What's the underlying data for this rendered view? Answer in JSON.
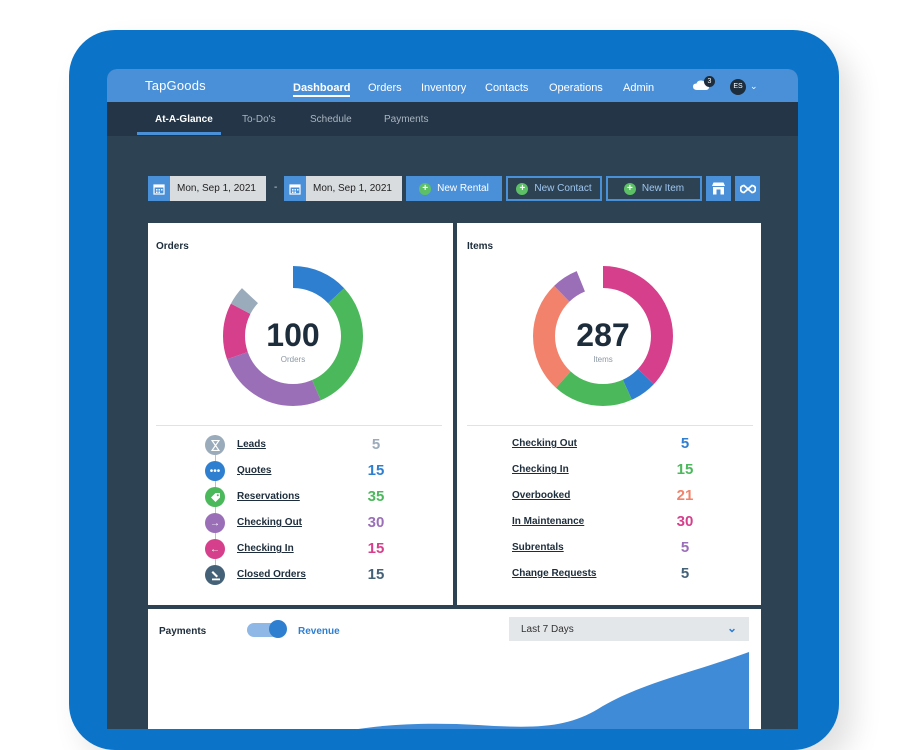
{
  "app": {
    "logo": "TapGoods"
  },
  "topnav": {
    "items": [
      {
        "label": "Dashboard",
        "active": true
      },
      {
        "label": "Orders",
        "active": false
      },
      {
        "label": "Inventory",
        "active": false
      },
      {
        "label": "Contacts",
        "active": false
      },
      {
        "label": "Operations",
        "active": false
      },
      {
        "label": "Admin",
        "active": false
      }
    ],
    "notification_count": "3",
    "avatar_initials": "ES"
  },
  "subnav": {
    "items": [
      {
        "label": "At-A-Glance",
        "active": true
      },
      {
        "label": "To-Do's",
        "active": false
      },
      {
        "label": "Schedule",
        "active": false
      },
      {
        "label": "Payments",
        "active": false
      }
    ]
  },
  "toolbar": {
    "start_date": "Mon, Sep 1, 2021",
    "separator": "-",
    "end_date": "Mon, Sep 1, 2021",
    "new_rental": "New Rental",
    "new_contact": "New Contact",
    "new_item": "New Item"
  },
  "orders": {
    "title": "Orders",
    "total": "100",
    "total_label": "Orders",
    "rows": [
      {
        "label": "Leads",
        "value": "5",
        "color": "#9aabbb",
        "icon": "hourglass-icon"
      },
      {
        "label": "Quotes",
        "value": "15",
        "color": "#2f7fd0",
        "icon": "ellipsis-icon"
      },
      {
        "label": "Reservations",
        "value": "35",
        "color": "#4cb85c",
        "icon": "tag-icon"
      },
      {
        "label": "Checking Out",
        "value": "30",
        "color": "#9b6fb8",
        "icon": "arrow-right-icon"
      },
      {
        "label": "Checking In",
        "value": "15",
        "color": "#d63f8c",
        "icon": "arrow-left-icon"
      },
      {
        "label": "Closed Orders",
        "value": "15",
        "color": "#456178",
        "icon": "stamp-icon"
      }
    ]
  },
  "items": {
    "title": "Items",
    "total": "287",
    "total_label": "Items",
    "rows": [
      {
        "label": "Checking Out",
        "value": "5",
        "color": "#2f7fd0"
      },
      {
        "label": "Checking In",
        "value": "15",
        "color": "#4cb85c"
      },
      {
        "label": "Overbooked",
        "value": "21",
        "color": "#f2826b"
      },
      {
        "label": "In Maintenance",
        "value": "30",
        "color": "#d63f8c"
      },
      {
        "label": "Subrentals",
        "value": "5",
        "color": "#9b6fb8"
      },
      {
        "label": "Change Requests",
        "value": "5",
        "color": "#456178"
      }
    ]
  },
  "payments": {
    "title": "Payments",
    "toggle_label": "Revenue",
    "range": "Last 7 Days"
  },
  "colors": {
    "accent": "#4a90d9",
    "nav_dark": "#233546",
    "device": "#0b74c8"
  }
}
